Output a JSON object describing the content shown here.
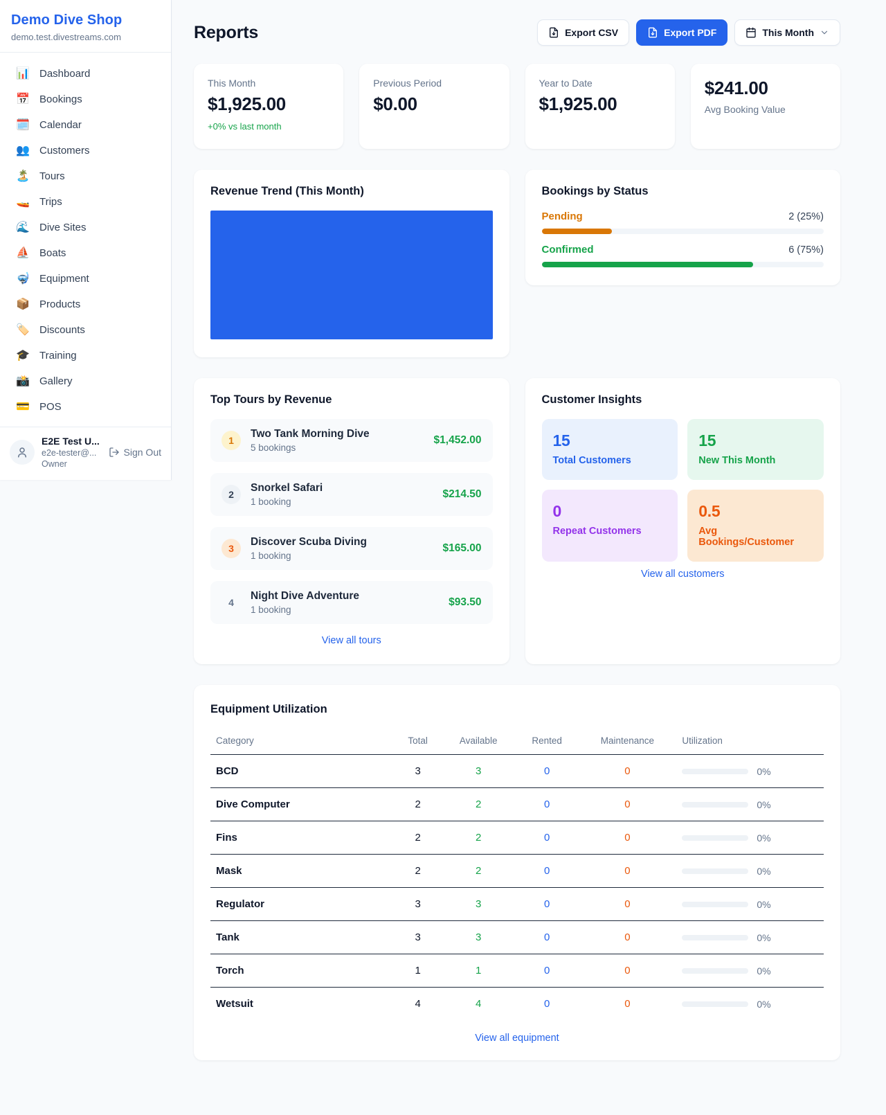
{
  "colors": {
    "accent_blue": "#2563eb",
    "success_green": "#16a34a",
    "pending_amber": "#d97706",
    "warning_orange": "#ea580c",
    "purple": "#9333ea"
  },
  "sidebar": {
    "shop_name": "Demo Dive Shop",
    "shop_domain": "demo.test.divestreams.com",
    "items": [
      {
        "icon": "📊",
        "label": "Dashboard"
      },
      {
        "icon": "📅",
        "label": "Bookings"
      },
      {
        "icon": "🗓️",
        "label": "Calendar"
      },
      {
        "icon": "👥",
        "label": "Customers"
      },
      {
        "icon": "🏝️",
        "label": "Tours"
      },
      {
        "icon": "🚤",
        "label": "Trips"
      },
      {
        "icon": "🌊",
        "label": "Dive Sites"
      },
      {
        "icon": "⛵",
        "label": "Boats"
      },
      {
        "icon": "🤿",
        "label": "Equipment"
      },
      {
        "icon": "📦",
        "label": "Products"
      },
      {
        "icon": "🏷️",
        "label": "Discounts"
      },
      {
        "icon": "🎓",
        "label": "Training"
      },
      {
        "icon": "📸",
        "label": "Gallery"
      },
      {
        "icon": "💳",
        "label": "POS"
      }
    ],
    "user": {
      "name": "E2E Test U...",
      "email": "e2e-tester@...",
      "role": "Owner",
      "sign_out_label": "Sign Out"
    }
  },
  "header": {
    "title": "Reports",
    "export_csv_label": "Export CSV",
    "export_pdf_label": "Export PDF",
    "period_label": "This Month"
  },
  "stats": {
    "this_month": {
      "label": "This Month",
      "value": "$1,925.00",
      "delta": "+0% vs last month"
    },
    "previous_period": {
      "label": "Previous Period",
      "value": "$0.00"
    },
    "year_to_date": {
      "label": "Year to Date",
      "value": "$1,925.00"
    },
    "avg_booking": {
      "value": "$241.00",
      "label": "Avg Booking Value"
    }
  },
  "revenue_trend": {
    "title": "Revenue Trend (This Month)",
    "fill_color": "#2563eb"
  },
  "chart_data": {
    "type": "area",
    "title": "Revenue Trend (This Month)",
    "x": [],
    "values": [],
    "note": "solid blue filled plot area; no axis ticks, labels or gridlines visible"
  },
  "bookings_by_status": {
    "title": "Bookings by Status",
    "statuses": [
      {
        "label": "Pending",
        "value_text": "2 (25%)",
        "count": 2,
        "percent": 25
      },
      {
        "label": "Confirmed",
        "value_text": "6 (75%)",
        "count": 6,
        "percent": 75
      }
    ]
  },
  "top_tours": {
    "title": "Top Tours by Revenue",
    "view_all_label": "View all tours",
    "items": [
      {
        "rank": "1",
        "name": "Two Tank Morning Dive",
        "bookings": "5 bookings",
        "revenue": "$1,452.00"
      },
      {
        "rank": "2",
        "name": "Snorkel Safari",
        "bookings": "1 booking",
        "revenue": "$214.50"
      },
      {
        "rank": "3",
        "name": "Discover Scuba Diving",
        "bookings": "1 booking",
        "revenue": "$165.00"
      },
      {
        "rank": "4",
        "name": "Night Dive Adventure",
        "bookings": "1 booking",
        "revenue": "$93.50"
      }
    ]
  },
  "customer_insights": {
    "title": "Customer Insights",
    "view_all_label": "View all customers",
    "boxes": [
      {
        "value": "15",
        "label": "Total Customers"
      },
      {
        "value": "15",
        "label": "New This Month"
      },
      {
        "value": "0",
        "label": "Repeat Customers"
      },
      {
        "value": "0.5",
        "label": "Avg Bookings/Customer"
      }
    ]
  },
  "equipment": {
    "title": "Equipment Utilization",
    "view_all_label": "View all equipment",
    "columns": [
      "Category",
      "Total",
      "Available",
      "Rented",
      "Maintenance",
      "Utilization"
    ],
    "rows": [
      {
        "category": "BCD",
        "total": "3",
        "available": "3",
        "rented": "0",
        "maintenance": "0",
        "utilization": "0%",
        "utilization_percent": 0
      },
      {
        "category": "Dive Computer",
        "total": "2",
        "available": "2",
        "rented": "0",
        "maintenance": "0",
        "utilization": "0%",
        "utilization_percent": 0
      },
      {
        "category": "Fins",
        "total": "2",
        "available": "2",
        "rented": "0",
        "maintenance": "0",
        "utilization": "0%",
        "utilization_percent": 0
      },
      {
        "category": "Mask",
        "total": "2",
        "available": "2",
        "rented": "0",
        "maintenance": "0",
        "utilization": "0%",
        "utilization_percent": 0
      },
      {
        "category": "Regulator",
        "total": "3",
        "available": "3",
        "rented": "0",
        "maintenance": "0",
        "utilization": "0%",
        "utilization_percent": 0
      },
      {
        "category": "Tank",
        "total": "3",
        "available": "3",
        "rented": "0",
        "maintenance": "0",
        "utilization": "0%",
        "utilization_percent": 0
      },
      {
        "category": "Torch",
        "total": "1",
        "available": "1",
        "rented": "0",
        "maintenance": "0",
        "utilization": "0%",
        "utilization_percent": 0
      },
      {
        "category": "Wetsuit",
        "total": "4",
        "available": "4",
        "rented": "0",
        "maintenance": "0",
        "utilization": "0%",
        "utilization_percent": 0
      }
    ]
  }
}
